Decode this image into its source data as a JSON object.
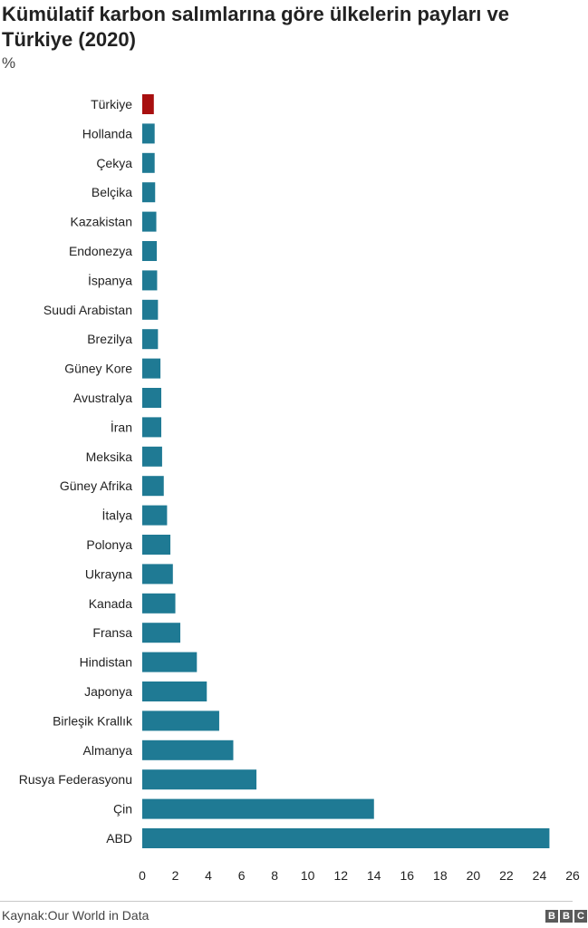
{
  "title": "Kümülatif karbon salımlarına göre ülkelerin payları ve Türkiye (2020)",
  "subtitle": "%",
  "source": "Kaynak:Our World in Data",
  "logo_letters": [
    "B",
    "B",
    "C"
  ],
  "colors": {
    "bar": "#1f7a94",
    "highlight": "#a80f0f"
  },
  "chart_data": {
    "type": "bar",
    "orientation": "horizontal",
    "title": "Kümülatif karbon salımlarına göre ülkelerin payları ve Türkiye (2020)",
    "subtitle": "%",
    "categories": [
      "Türkiye",
      "Hollanda",
      "Çekya",
      "Belçika",
      "Kazakistan",
      "Endonezya",
      "İspanya",
      "Suudi Arabistan",
      "Brezilya",
      "Güney Kore",
      "Avustralya",
      "İran",
      "Meksika",
      "Güney Afrika",
      "İtalya",
      "Polonya",
      "Ukrayna",
      "Kanada",
      "Fransa",
      "Hindistan",
      "Japonya",
      "Birleşik Krallık",
      "Almanya",
      "Rusya Federasyonu",
      "Çin",
      "ABD"
    ],
    "values": [
      0.7,
      0.75,
      0.75,
      0.78,
      0.85,
      0.88,
      0.9,
      0.95,
      0.95,
      1.1,
      1.15,
      1.15,
      1.2,
      1.3,
      1.5,
      1.7,
      1.85,
      2.0,
      2.3,
      3.3,
      3.9,
      4.65,
      5.5,
      6.9,
      14.0,
      24.6
    ],
    "highlight": [
      "Türkiye"
    ],
    "xlim": [
      0,
      26
    ],
    "xticks": [
      0,
      2,
      4,
      6,
      8,
      10,
      12,
      14,
      16,
      18,
      20,
      22,
      24,
      26
    ],
    "grid": false,
    "legend": "none"
  }
}
